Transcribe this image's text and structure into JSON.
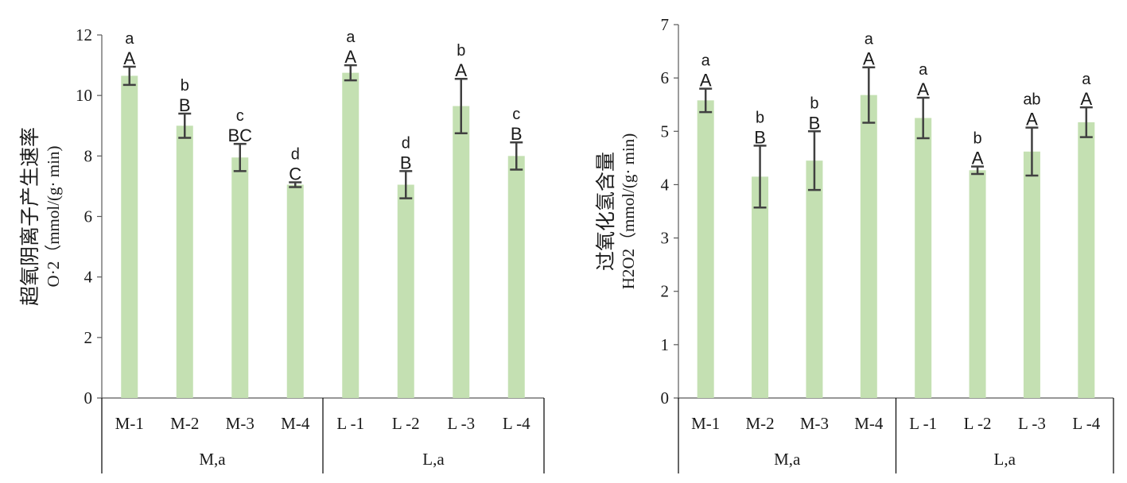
{
  "chart_data": [
    {
      "type": "bar",
      "ylabel_line1": "超氧阴离子产生速率",
      "ylabel_line2": "O·2（mmol/(g· min)",
      "ylim": [
        0,
        12
      ],
      "yticks": [
        "0",
        "2",
        "4",
        "6",
        "8",
        "10",
        "12"
      ],
      "categories": [
        "M-1",
        "M-2",
        "M-3",
        "M-4",
        "L -1",
        "L -2",
        "L -3",
        "L -4"
      ],
      "groups": [
        {
          "label": "M,a",
          "count": 4
        },
        {
          "label": "L,a",
          "count": 4
        }
      ],
      "values": [
        10.65,
        9.0,
        7.95,
        7.05,
        10.75,
        7.05,
        9.65,
        8.0
      ],
      "errors": [
        0.3,
        0.4,
        0.45,
        0.08,
        0.25,
        0.45,
        0.9,
        0.45
      ],
      "upper_letters": [
        "A",
        "B",
        "BC",
        "C",
        "A",
        "B",
        "A",
        "B"
      ],
      "lower_letters": [
        "a",
        "b",
        "c",
        "d",
        "a",
        "d",
        "b",
        "c"
      ],
      "bar_color": "#c4e0b2",
      "errorbar_color": "#404040"
    },
    {
      "type": "bar",
      "ylabel_line1": "过氧化氢含量",
      "ylabel_line2": "H2O2（mmol/(g· min)",
      "ylim": [
        0,
        7
      ],
      "yticks": [
        "0",
        "1",
        "2",
        "3",
        "4",
        "5",
        "6",
        "7"
      ],
      "categories": [
        "M-1",
        "M-2",
        "M-3",
        "M-4",
        "L -1",
        "L -2",
        "L -3",
        "L -4"
      ],
      "groups": [
        {
          "label": "M,a",
          "count": 4
        },
        {
          "label": "L,a",
          "count": 4
        }
      ],
      "values": [
        5.58,
        4.15,
        4.45,
        5.68,
        5.25,
        4.27,
        4.62,
        5.17
      ],
      "errors": [
        0.22,
        0.58,
        0.55,
        0.52,
        0.38,
        0.07,
        0.45,
        0.28
      ],
      "upper_letters": [
        "A",
        "B",
        "B",
        "A",
        "A",
        "A",
        "A",
        "A"
      ],
      "lower_letters": [
        "a",
        "b",
        "b",
        "a",
        "a",
        "b",
        "ab",
        "a"
      ],
      "bar_color": "#c4e0b2",
      "errorbar_color": "#404040"
    }
  ]
}
